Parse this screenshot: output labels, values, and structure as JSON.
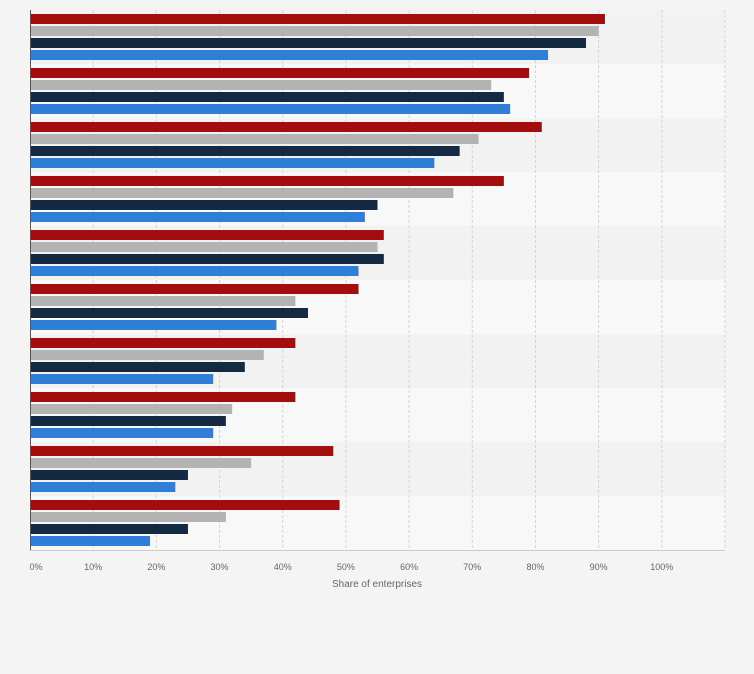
{
  "chart_data": {
    "type": "bar",
    "orientation": "horizontal",
    "categories": [
      "",
      "",
      "",
      "",
      "",
      "",
      "",
      "",
      "",
      ""
    ],
    "series": [
      {
        "color": "#a30d0d",
        "values": [
          91,
          79,
          81,
          75,
          56,
          52,
          42,
          42,
          48,
          49
        ]
      },
      {
        "color": "#b3b3b3",
        "values": [
          90,
          73,
          71,
          67,
          55,
          42,
          37,
          32,
          35,
          31
        ]
      },
      {
        "color": "#142a43",
        "values": [
          88,
          75,
          68,
          55,
          56,
          44,
          34,
          31,
          25,
          25
        ]
      },
      {
        "color": "#2f7ed8",
        "values": [
          82,
          76,
          64,
          53,
          52,
          39,
          29,
          29,
          23,
          19
        ]
      }
    ],
    "xlabel": "Share of enterprises",
    "ylabel": "",
    "xlim": [
      0,
      110
    ],
    "x_ticks": [
      "0%",
      "10%",
      "20%",
      "30%",
      "40%",
      "50%",
      "60%",
      "70%",
      "80%",
      "90%",
      "100%"
    ],
    "grid": true,
    "legend": "none"
  }
}
